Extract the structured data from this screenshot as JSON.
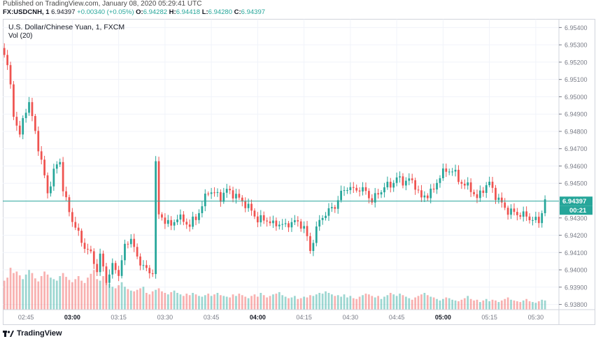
{
  "header": {
    "published": "Published on TradingView.com, January 08, 2020 05:29:41 UTC",
    "symbol": "FX:USDCNH, 1",
    "price": "6.94397",
    "change": "+0.00340 (+0.05%)",
    "o_label": "O:",
    "o_value": "6.94282",
    "h_label": "H:",
    "h_value": "6.94418",
    "l_label": "L:",
    "l_value": "6.94280",
    "c_label": "C:",
    "c_value": "6.94397"
  },
  "legend": {
    "title": "U.S. Dollar/Chinese Yuan, 1, FXCM",
    "volume": "Vol (20)"
  },
  "footer": {
    "brand": "TradingView"
  },
  "colors": {
    "up": "#26a69a",
    "down": "#ef5350",
    "grid": "#f0f3fa",
    "axis": "#787b86",
    "last_price": "#26a69a"
  },
  "chart_data": {
    "type": "candlestick",
    "title": "U.S. Dollar/Chinese Yuan, 1, FXCM",
    "y_ticks": [
      "6.95400",
      "6.95300",
      "6.95200",
      "6.95100",
      "6.95000",
      "6.94900",
      "6.94800",
      "6.94700",
      "6.94600",
      "6.94500",
      "6.94300",
      "6.94200",
      "6.94100",
      "6.94000",
      "6.93900",
      "6.93800"
    ],
    "ylim": [
      6.9377,
      6.9545
    ],
    "x_ticks": [
      "02:45",
      "03:00",
      "03:15",
      "03:30",
      "03:45",
      "04:00",
      "04:15",
      "04:30",
      "04:45",
      "05:00",
      "05:15",
      "05:30"
    ],
    "x_tick_minutes": [
      165,
      180,
      195,
      210,
      225,
      240,
      255,
      270,
      285,
      300,
      315,
      330
    ],
    "xlim_minutes": [
      157.5,
      337.5
    ],
    "last_price_label": "6.94397",
    "countdown": "00:21",
    "grid": true,
    "close_anchors": [
      [
        158,
        6.9525
      ],
      [
        159,
        6.9519
      ],
      [
        161,
        6.949
      ],
      [
        163,
        6.9478
      ],
      [
        165,
        6.9493
      ],
      [
        166,
        6.9497
      ],
      [
        168,
        6.9479
      ],
      [
        170,
        6.9463
      ],
      [
        172,
        6.9444
      ],
      [
        174,
        6.9457
      ],
      [
        176,
        6.9463
      ],
      [
        177,
        6.9447
      ],
      [
        179,
        6.9433
      ],
      [
        181,
        6.9425
      ],
      [
        183,
        6.9416
      ],
      [
        186,
        6.9409
      ],
      [
        188,
        6.94
      ],
      [
        189,
        6.9408
      ],
      [
        191,
        6.9394
      ],
      [
        193,
        6.9402
      ],
      [
        195,
        6.9398
      ],
      [
        197,
        6.9413
      ],
      [
        199,
        6.9419
      ],
      [
        201,
        6.9406
      ],
      [
        203,
        6.9403
      ],
      [
        205,
        6.9397
      ],
      [
        206,
        6.94
      ],
      [
        207,
        6.9462
      ],
      [
        208,
        6.9431
      ],
      [
        210,
        6.9429
      ],
      [
        212,
        6.9425
      ],
      [
        214,
        6.9431
      ],
      [
        216,
        6.9428
      ],
      [
        218,
        6.9426
      ],
      [
        220,
        6.943
      ],
      [
        222,
        6.9437
      ],
      [
        224,
        6.9446
      ],
      [
        226,
        6.9444
      ],
      [
        228,
        6.9442
      ],
      [
        230,
        6.9446
      ],
      [
        232,
        6.9444
      ],
      [
        234,
        6.9441
      ],
      [
        236,
        6.9438
      ],
      [
        238,
        6.9434
      ],
      [
        240,
        6.9429
      ],
      [
        243,
        6.9429
      ],
      [
        245,
        6.9426
      ],
      [
        247,
        6.9427
      ],
      [
        249,
        6.9425
      ],
      [
        251,
        6.9428
      ],
      [
        253,
        6.9427
      ],
      [
        255,
        6.9425
      ],
      [
        257,
        6.9411
      ],
      [
        259,
        6.9424
      ],
      [
        261,
        6.9431
      ],
      [
        263,
        6.9434
      ],
      [
        265,
        6.9437
      ],
      [
        267,
        6.9444
      ],
      [
        269,
        6.9448
      ],
      [
        271,
        6.9446
      ],
      [
        273,
        6.9447
      ],
      [
        275,
        6.9445
      ],
      [
        277,
        6.944
      ],
      [
        279,
        6.9444
      ],
      [
        281,
        6.9448
      ],
      [
        283,
        6.9449
      ],
      [
        285,
        6.9453
      ],
      [
        287,
        6.9451
      ],
      [
        289,
        6.9452
      ],
      [
        291,
        6.9449
      ],
      [
        293,
        6.9441
      ],
      [
        295,
        6.9444
      ],
      [
        297,
        6.9446
      ],
      [
        299,
        6.9455
      ],
      [
        301,
        6.9457
      ],
      [
        303,
        6.9458
      ],
      [
        305,
        6.9452
      ],
      [
        307,
        6.9449
      ],
      [
        309,
        6.9447
      ],
      [
        311,
        6.9441
      ],
      [
        313,
        6.9447
      ],
      [
        315,
        6.945
      ],
      [
        317,
        6.9443
      ],
      [
        319,
        6.9438
      ],
      [
        321,
        6.9434
      ],
      [
        323,
        6.9433
      ],
      [
        325,
        6.9432
      ],
      [
        327,
        6.9431
      ],
      [
        329,
        6.9429
      ],
      [
        331,
        6.9428
      ],
      [
        333,
        6.944
      ]
    ],
    "volume": [
      38,
      42,
      55,
      48,
      50,
      45,
      40,
      46,
      52,
      48,
      41,
      37,
      44,
      50,
      46,
      42,
      40,
      38,
      44,
      48,
      43,
      39,
      36,
      40,
      44,
      38,
      35,
      42,
      47,
      52,
      40,
      38,
      44,
      36,
      34,
      30,
      28,
      32,
      36,
      30,
      27,
      25,
      24,
      26,
      28,
      30,
      22,
      20,
      24,
      26,
      28,
      24,
      22,
      20,
      23,
      25,
      22,
      20,
      18,
      21,
      19,
      22,
      20,
      18,
      17,
      19,
      21,
      18,
      20,
      22,
      19,
      18,
      17,
      16,
      20,
      18,
      21,
      19,
      17,
      15,
      18,
      20,
      17,
      22,
      19,
      16,
      18,
      20,
      21,
      23,
      19,
      17,
      15,
      16,
      18,
      14,
      15,
      17,
      16,
      19,
      18,
      20,
      22,
      21,
      24,
      22,
      20,
      18,
      19,
      17,
      20,
      16,
      18,
      15,
      14,
      17,
      19,
      21,
      20,
      18,
      16,
      18,
      14,
      17,
      19,
      22,
      20,
      18,
      21,
      19,
      17,
      15,
      13,
      16,
      18,
      20,
      22,
      19,
      17,
      16,
      14,
      12,
      14,
      16,
      15,
      13,
      12,
      11,
      13,
      15,
      18,
      14,
      12,
      13,
      10,
      12,
      14,
      11,
      13,
      12,
      10,
      12,
      14,
      16,
      13,
      12,
      11,
      10,
      12,
      14,
      11,
      10,
      9,
      11,
      13,
      12,
      10,
      11,
      9,
      8,
      10,
      12
    ]
  }
}
